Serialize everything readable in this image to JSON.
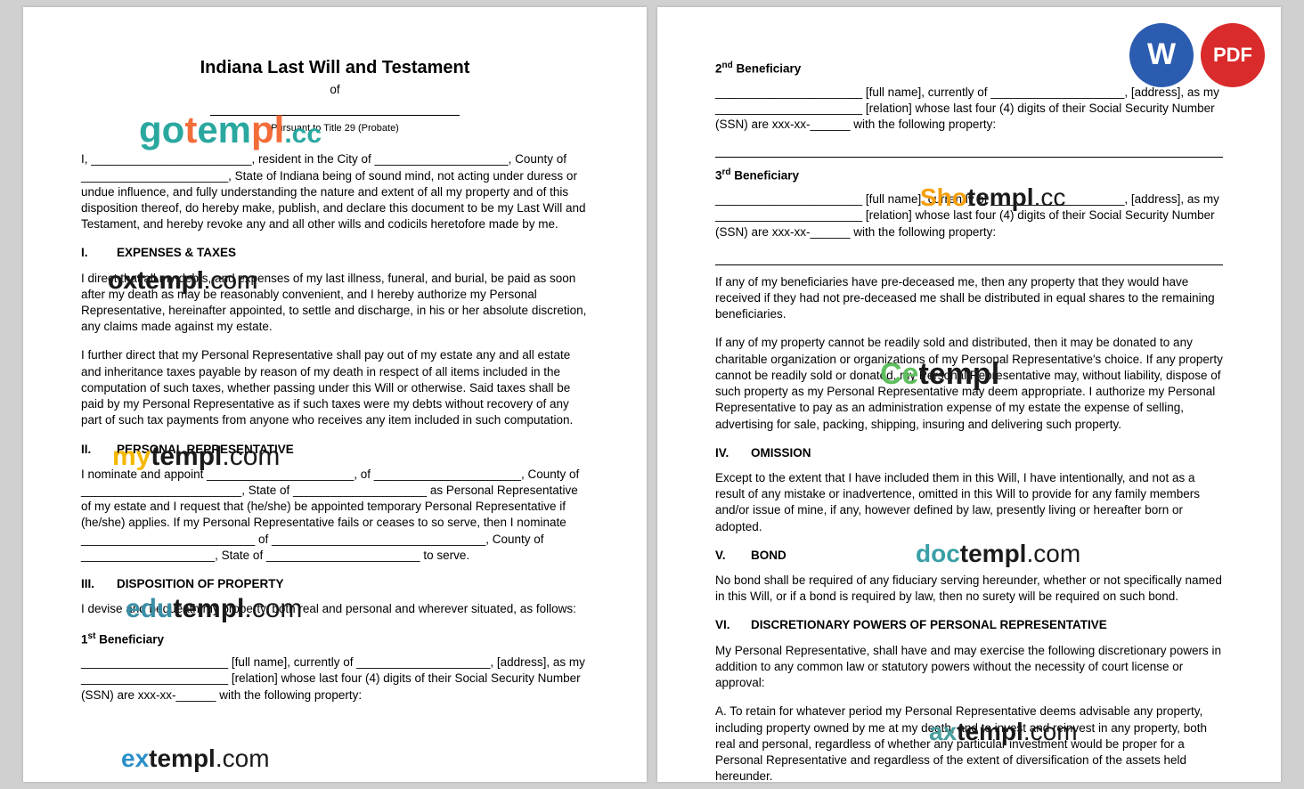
{
  "icons": {
    "word": "W",
    "pdf": "PDF"
  },
  "page1": {
    "title": "Indiana Last Will and Testament",
    "of": "of",
    "subtitle": "Pursuant to Title 29 (Probate)",
    "intro": "I, ________________________, resident in the City of ____________________, County of ______________________, State of Indiana being of sound mind, not acting under duress or undue influence, and fully understanding the nature and extent of all my property and of this disposition thereof, do hereby make, publish, and declare this document to be my Last Will and Testament, and hereby revoke any and all other wills and codicils heretofore made by me.",
    "s1_head": "EXPENSES & TAXES",
    "s1_p1": "I direct that all my debts, and expenses of my last illness, funeral, and burial, be paid as soon after my death as may be reasonably convenient, and I hereby authorize my Personal Representative, hereinafter appointed, to settle and discharge, in his or her absolute discretion, any claims made against my estate.",
    "s1_p2": "I further direct that my Personal Representative shall pay out of my estate any and all estate and inheritance taxes payable by reason of my death in respect of all items included in the computation of such taxes, whether passing under this Will or otherwise. Said taxes shall be paid by my Personal Representative as if such taxes were my debts without recovery of any part of such tax payments from anyone who receives any item included in such computation.",
    "s2_head": "PERSONAL REPRESENTATIVE",
    "s2_p": "I nominate and appoint ______________________, of ______________________, County of ________________________, State of ____________________ as Personal Representative of my estate and I request that (he/she) be appointed temporary Personal Representative if (he/she) applies. If my Personal Representative fails or ceases to so serve, then I nominate __________________________ of ________________________________, County of ____________________, State of _______________________ to serve.",
    "s3_head": "DISPOSITION OF PROPERTY",
    "s3_p": "I devise and bequeath my property, both real and personal and wherever situated, as follows:",
    "b1_head": "1st Beneficiary",
    "b1_body": "______________________ [full name], currently of ____________________, [address], as my ______________________ [relation] whose last four (4) digits of their Social Security Number (SSN) are xxx-xx-______ with the following property:"
  },
  "page2": {
    "b2_head": "2nd Beneficiary",
    "b2_body": "______________________ [full name], currently of ____________________, [address], as my ______________________ [relation] whose last four (4) digits of their Social Security Number (SSN) are xxx-xx-______ with the following property:",
    "b3_head": "3rd Beneficiary",
    "b3_body": "______________________ [full name], currently of ____________________, [address], as my ______________________ [relation] whose last four (4) digits of their Social Security Number (SSN) are xxx-xx-______ with the following property:",
    "p_pre": "If any of my beneficiaries have pre-deceased me, then any property that they would have received if they had not pre-deceased me shall be distributed in equal shares to the remaining beneficiaries.",
    "p_donate": "If any of my property cannot be readily sold and distributed, then it may be donated to any charitable organization or organizations of my Personal Representative's choice.  If any property cannot be readily sold or donated, my Personal Representative may, without liability, dispose of such property as my Personal Representative may deem appropriate. I authorize my Personal Representative to pay as an administration expense of my estate the expense of selling, advertising for sale, packing, shipping, insuring and delivering such property.",
    "s4_head": "OMISSION",
    "s4_p": "Except to the extent that I have included them in this Will, I have intentionally, and not as a result of any mistake or inadvertence, omitted in this Will to provide for any family members and/or issue of mine, if any, however defined by law, presently living or hereafter born or adopted.",
    "s5_head": "BOND",
    "s5_p": "No bond shall be required of any fiduciary serving hereunder, whether or not specifically named in this Will, or if a bond is required by law, then no surety will be required on such bond.",
    "s6_head": "DISCRETIONARY POWERS OF PERSONAL REPRESENTATIVE",
    "s6_p": "My Personal Representative, shall have and may exercise the following discretionary powers in addition to any common law or statutory powers without the necessity of court license or approval:",
    "s6_a": "A.        To retain for whatever period my Personal Representative deems advisable any property, including property owned by me at my death, and to invest and reinvest in any property, both real and personal, regardless of whether any particular investment would be proper for a Personal Representative and regardless of the extent of diversification of the assets held hereunder."
  },
  "watermarks": {
    "go": "gotempl.cc",
    "ox": "oxtempl.com",
    "my": "mytempl.com",
    "edu": "edutempl.com",
    "ex": "extempl.com",
    "sho": "Shotempl.cc",
    "ce": "Cetempl",
    "doc": "doctempl.com",
    "ax": "axtempl.com"
  },
  "colors": {
    "word_bg": "#2b5cb0",
    "pdf_bg": "#d92b2b",
    "page_bg": "#ffffff",
    "body_bg": "#d0d0d0"
  }
}
